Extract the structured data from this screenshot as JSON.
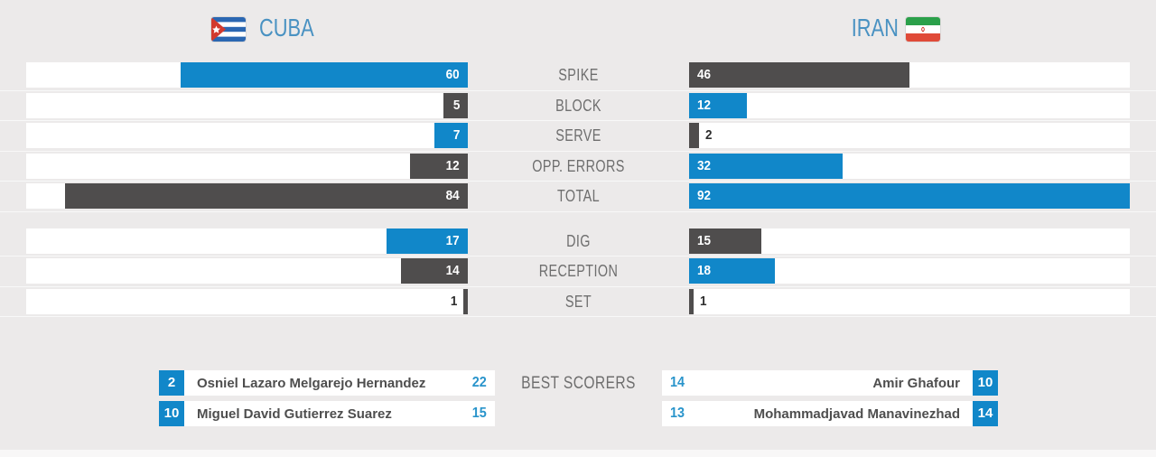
{
  "header": {
    "left_team": "CUBA",
    "right_team": "IRAN"
  },
  "chart_data": {
    "type": "bar",
    "orientation": "horizontal_mirrored",
    "title": "CUBA vs IRAN volleyball match statistics",
    "categories": [
      "SPIKE",
      "BLOCK",
      "SERVE",
      "OPP. ERRORS",
      "TOTAL",
      "DIG",
      "RECEPTION",
      "SET"
    ],
    "series": [
      {
        "name": "CUBA",
        "values": [
          60,
          5,
          7,
          12,
          84,
          17,
          14,
          1
        ]
      },
      {
        "name": "IRAN",
        "values": [
          46,
          12,
          2,
          32,
          92,
          15,
          18,
          1
        ]
      }
    ],
    "scale_max": 92,
    "value_labels_shown": true,
    "highlight_rule": "higher value bar is blue, lower or tied is dark gray"
  },
  "best_scorers": {
    "title": "BEST SCORERS",
    "cuba": [
      {
        "badge": "2",
        "name": "Osniel Lazaro Melgarejo Hernandez",
        "value": "22"
      },
      {
        "badge": "10",
        "name": "Miguel David Gutierrez Suarez",
        "value": "15"
      }
    ],
    "iran": [
      {
        "value": "14",
        "name": "Amir Ghafour",
        "badge": "10"
      },
      {
        "value": "13",
        "name": "Mohammadjavad Manavinezhad",
        "badge": "14"
      }
    ]
  },
  "colors": {
    "accent_blue": "#1187c9",
    "bar_dark": "#4f4d4d",
    "background": "#eceaea",
    "track_white": "#ffffff",
    "title_blue": "#4a92c2",
    "label_gray": "#6e6e6e"
  }
}
